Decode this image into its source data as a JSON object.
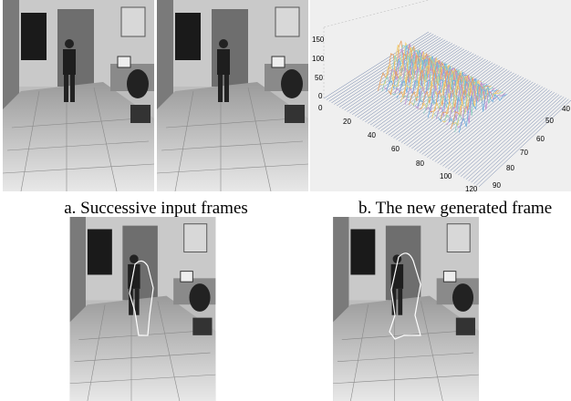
{
  "captions": {
    "a": "a. Successive input frames",
    "b": "b. The new generated frame"
  },
  "plot": {
    "z_ticks": [
      "150",
      "100",
      "50",
      "0"
    ],
    "x_ticks": [
      "0",
      "20",
      "40",
      "60",
      "80",
      "100",
      "120"
    ],
    "y_ticks": [
      "40",
      "50",
      "60",
      "70",
      "80",
      "90"
    ]
  }
}
